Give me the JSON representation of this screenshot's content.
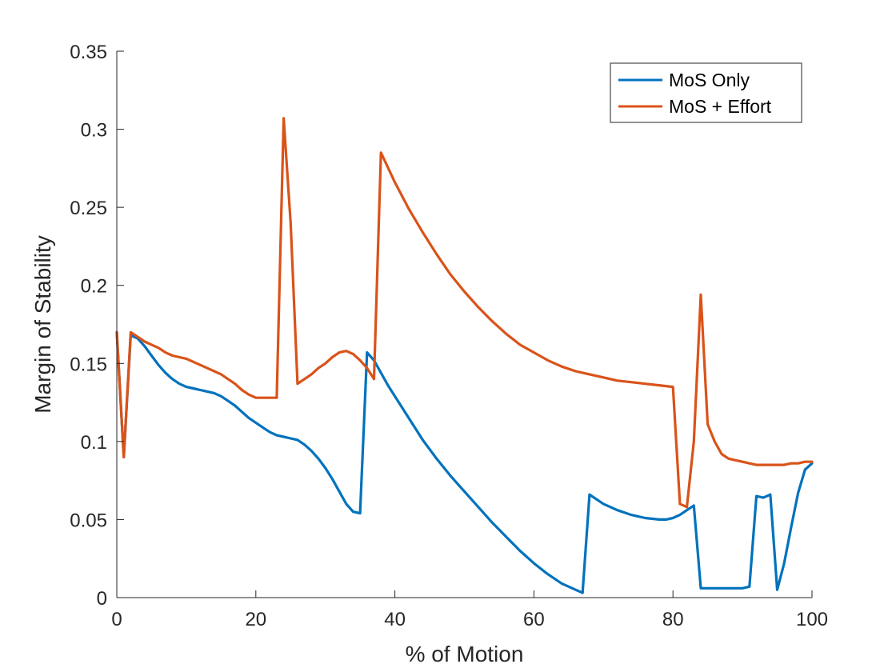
{
  "chart_data": {
    "type": "line",
    "xlabel": "% of Motion",
    "ylabel": "Margin of Stability",
    "xlim": [
      0,
      100
    ],
    "ylim": [
      0,
      0.35
    ],
    "xticks": [
      0,
      20,
      40,
      60,
      80,
      100
    ],
    "xtick_labels": [
      "0",
      "20",
      "40",
      "60",
      "80",
      "100"
    ],
    "yticks": [
      0,
      0.05,
      0.1,
      0.15,
      0.2,
      0.25,
      0.3,
      0.35
    ],
    "ytick_labels": [
      "0",
      "0.05",
      "0.1",
      "0.15",
      "0.2",
      "0.25",
      "0.3",
      "0.35"
    ],
    "grid": false,
    "legend_position": "top-right",
    "series": [
      {
        "name": "MoS Only",
        "color": "#0072BD",
        "x": [
          0,
          1,
          2,
          3,
          4,
          5,
          6,
          7,
          8,
          9,
          10,
          11,
          12,
          13,
          14,
          15,
          16,
          17,
          18,
          19,
          20,
          21,
          22,
          23,
          24,
          25,
          26,
          27,
          28,
          29,
          30,
          31,
          32,
          33,
          34,
          35,
          36,
          37,
          38,
          39,
          40,
          42,
          44,
          46,
          48,
          50,
          52,
          54,
          56,
          58,
          60,
          62,
          64,
          66,
          67,
          68,
          69,
          70,
          72,
          74,
          76,
          78,
          79,
          80,
          81,
          82,
          83,
          84,
          85,
          86,
          87,
          88,
          89,
          90,
          91,
          92,
          93,
          94,
          95,
          96,
          97,
          98,
          99,
          100
        ],
        "y": [
          0.17,
          0.09,
          0.168,
          0.166,
          0.161,
          0.155,
          0.149,
          0.144,
          0.14,
          0.137,
          0.135,
          0.134,
          0.133,
          0.132,
          0.131,
          0.129,
          0.126,
          0.123,
          0.119,
          0.115,
          0.112,
          0.109,
          0.106,
          0.104,
          0.103,
          0.102,
          0.101,
          0.098,
          0.094,
          0.089,
          0.083,
          0.076,
          0.068,
          0.06,
          0.055,
          0.054,
          0.157,
          0.152,
          0.144,
          0.136,
          0.129,
          0.115,
          0.101,
          0.089,
          0.078,
          0.068,
          0.058,
          0.048,
          0.039,
          0.03,
          0.022,
          0.015,
          0.009,
          0.005,
          0.003,
          0.066,
          0.063,
          0.06,
          0.056,
          0.053,
          0.051,
          0.05,
          0.05,
          0.051,
          0.053,
          0.056,
          0.059,
          0.006,
          0.006,
          0.006,
          0.006,
          0.006,
          0.006,
          0.006,
          0.007,
          0.065,
          0.064,
          0.066,
          0.005,
          0.022,
          0.045,
          0.067,
          0.082,
          0.086
        ]
      },
      {
        "name": "MoS + Effort",
        "color": "#D95319",
        "x": [
          0,
          1,
          2,
          3,
          4,
          5,
          6,
          7,
          8,
          9,
          10,
          11,
          12,
          13,
          14,
          15,
          16,
          17,
          18,
          19,
          20,
          21,
          22,
          23,
          24,
          25,
          26,
          27,
          28,
          29,
          30,
          31,
          32,
          33,
          34,
          35,
          36,
          37,
          38,
          40,
          42,
          44,
          46,
          48,
          50,
          52,
          54,
          56,
          58,
          60,
          62,
          64,
          66,
          68,
          70,
          72,
          74,
          76,
          78,
          80,
          81,
          82,
          83,
          84,
          85,
          86,
          87,
          88,
          89,
          90,
          91,
          92,
          93,
          94,
          95,
          96,
          97,
          98,
          99,
          100
        ],
        "y": [
          0.17,
          0.09,
          0.17,
          0.167,
          0.164,
          0.162,
          0.16,
          0.157,
          0.155,
          0.154,
          0.153,
          0.151,
          0.149,
          0.147,
          0.145,
          0.143,
          0.14,
          0.137,
          0.133,
          0.13,
          0.128,
          0.128,
          0.128,
          0.128,
          0.307,
          0.24,
          0.137,
          0.14,
          0.143,
          0.147,
          0.15,
          0.154,
          0.157,
          0.158,
          0.156,
          0.152,
          0.147,
          0.14,
          0.285,
          0.266,
          0.249,
          0.234,
          0.22,
          0.207,
          0.196,
          0.186,
          0.177,
          0.169,
          0.162,
          0.157,
          0.152,
          0.148,
          0.145,
          0.143,
          0.141,
          0.139,
          0.138,
          0.137,
          0.136,
          0.135,
          0.06,
          0.058,
          0.1,
          0.194,
          0.111,
          0.1,
          0.092,
          0.089,
          0.088,
          0.087,
          0.086,
          0.085,
          0.085,
          0.085,
          0.085,
          0.085,
          0.086,
          0.086,
          0.087,
          0.087
        ]
      }
    ]
  }
}
